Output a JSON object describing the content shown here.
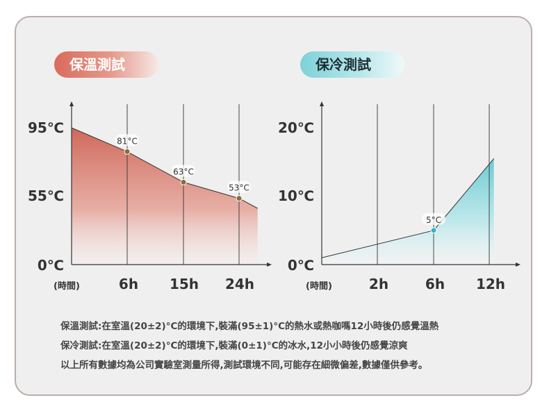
{
  "colors": {
    "warm_fill": "#d0685a",
    "warm_point": "#8a6a3e",
    "cold_fill": "#7fd1d8",
    "cold_point": "#2fb8c4",
    "card_bg": "#f0efef",
    "card_border": "#b9aeaa",
    "line": "#333333"
  },
  "chart_data": [
    {
      "type": "area",
      "title": "保溫測試",
      "x_unit_label": "(時間)",
      "x_ticks": [
        "6h",
        "15h",
        "24h"
      ],
      "y_ticks": [
        "95℃",
        "55℃",
        "0℃"
      ],
      "series": [
        {
          "x": [
            0,
            6,
            15,
            24,
            27
          ],
          "y": [
            95,
            81,
            63,
            53,
            45
          ]
        }
      ],
      "point_labels": [
        {
          "x": 6,
          "y": 81,
          "label": "81°C"
        },
        {
          "x": 15,
          "y": 63,
          "label": "63°C"
        },
        {
          "x": 24,
          "y": 53,
          "label": "53°C"
        }
      ]
    },
    {
      "type": "area",
      "title": "保冷測試",
      "x_unit_label": "(時間)",
      "x_ticks": [
        "2h",
        "6h",
        "12h"
      ],
      "y_ticks": [
        "20℃",
        "10℃",
        "0℃"
      ],
      "series": [
        {
          "x": [
            0,
            6,
            12.5
          ],
          "y": [
            1,
            5,
            15.5
          ]
        }
      ],
      "point_labels": [
        {
          "x": 6,
          "y": 5,
          "label": "5°C"
        }
      ]
    }
  ],
  "notes": [
    "保溫測試:在室溫(20±2)°C的環境下,裝滿(95±1)°C的熱水或熱咖嗎12小時後仍感覺溫熱",
    "保冷測試:在室溫(20±2)°C的環境下,裝滿(0±1)°C的冰水,12小小時後仍感覺涼爽",
    "以上所有數據均為公司實驗室測量所得,測試環境不同,可能存在細微偏差,數據僅供參考。"
  ]
}
